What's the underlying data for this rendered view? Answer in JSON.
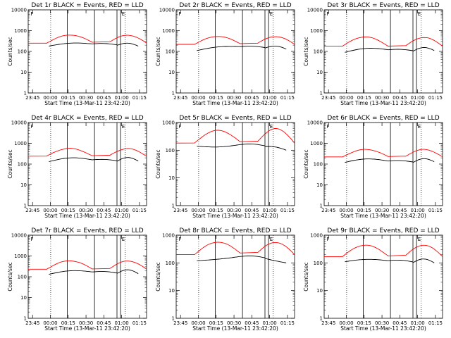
{
  "page": {
    "background": "#ffffff"
  },
  "colors": {
    "events": "#000000",
    "lld": "#ff0000",
    "axes": "#000000"
  },
  "chart_data": [
    {
      "id": "det-1r",
      "type": "line",
      "title": "Det 1r BLACK = Events, RED = LLD",
      "xlabel": "Start Time (13-Mar-11 23:42:20)",
      "ylabel": "Counts/sec",
      "yscale": "log",
      "ylim": [
        1,
        10000
      ],
      "x_ticks": [
        "23:45",
        "00:00",
        "00:15",
        "00:30",
        "00:45",
        "01:00",
        "01:15"
      ],
      "y_ticks": [
        "1",
        "10",
        "100",
        "1000",
        "10000"
      ],
      "lld": {
        "flat": 250,
        "peak1": 650,
        "mid": 280,
        "peak2": 650,
        "end": 250
      },
      "events": {
        "start": 180,
        "peak1": 280,
        "mid": 230,
        "peak2": 260,
        "end": 180
      },
      "annotations": [
        "F",
        "E"
      ]
    },
    {
      "id": "det-2r",
      "type": "line",
      "title": "Det 2r BLACK = Events, RED = LLD",
      "xlabel": "Start Time (13-Mar-11 23:42:20)",
      "ylabel": "Counts/sec",
      "yscale": "log",
      "ylim": [
        1,
        10000
      ],
      "x_ticks": [
        "23:45",
        "00:00",
        "00:15",
        "00:30",
        "00:45",
        "01:00",
        "01:15"
      ],
      "y_ticks": [
        "1",
        "10",
        "100",
        "1000",
        "10000"
      ],
      "lld": {
        "flat": 220,
        "peak1": 550,
        "mid": 240,
        "peak2": 550,
        "end": 220
      },
      "events": {
        "start": 110,
        "peak1": 200,
        "mid": 170,
        "peak2": 190,
        "end": 130
      },
      "annotations": [
        "F",
        "E"
      ]
    },
    {
      "id": "det-3r",
      "type": "line",
      "title": "Det 3r BLACK = Events, RED = LLD",
      "xlabel": "Start Time (13-Mar-11 23:42:20)",
      "ylabel": "Counts/sec",
      "yscale": "log",
      "ylim": [
        1,
        10000
      ],
      "x_ticks": [
        "23:45",
        "00:00",
        "00:15",
        "00:30",
        "00:45",
        "01:00",
        "01:15"
      ],
      "y_ticks": [
        "1",
        "10",
        "100",
        "1000",
        "10000"
      ],
      "lld": {
        "flat": 180,
        "peak1": 500,
        "mid": 180,
        "peak2": 480,
        "end": 180
      },
      "events": {
        "start": 90,
        "peak1": 160,
        "mid": 120,
        "peak2": 160,
        "end": 110
      },
      "annotations": [
        "F",
        "E"
      ]
    },
    {
      "id": "det-4r",
      "type": "line",
      "title": "Det 4r BLACK = Events, RED = LLD",
      "xlabel": "Start Time (13-Mar-11 23:42:20)",
      "ylabel": "Counts/sec",
      "yscale": "log",
      "ylim": [
        1,
        10000
      ],
      "x_ticks": [
        "23:45",
        "00:00",
        "00:15",
        "00:30",
        "00:45",
        "01:00",
        "01:15"
      ],
      "y_ticks": [
        "1",
        "10",
        "100",
        "1000",
        "10000"
      ],
      "lld": {
        "flat": 240,
        "peak1": 580,
        "mid": 250,
        "peak2": 580,
        "end": 240
      },
      "events": {
        "start": 130,
        "peak1": 220,
        "mid": 160,
        "peak2": 210,
        "end": 140
      },
      "annotations": [
        "F",
        "E"
      ]
    },
    {
      "id": "det-5r",
      "type": "line",
      "title": "Det 5r BLACK = Events, RED = LLD",
      "xlabel": "Start Time (13-Mar-11 23:42:20)",
      "ylabel": "Counts/sec",
      "yscale": "log",
      "ylim": [
        1,
        1000
      ],
      "x_ticks": [
        "23:45",
        "00:00",
        "00:15",
        "00:30",
        "00:45",
        "01:00",
        "01:15"
      ],
      "y_ticks": [
        "1",
        "10",
        "100",
        "1000"
      ],
      "lld": {
        "flat": 180,
        "peak1": 550,
        "mid": 200,
        "peak2": 650,
        "end": 180
      },
      "events": {
        "start": 140,
        "peak1": 140,
        "mid": 160,
        "peak2": 150,
        "end": 100
      },
      "annotations": [
        "F",
        "E"
      ]
    },
    {
      "id": "det-6r",
      "type": "line",
      "title": "Det 6r BLACK = Events, RED = LLD",
      "xlabel": "Start Time (13-Mar-11 23:42:20)",
      "ylabel": "Counts/sec",
      "yscale": "log",
      "ylim": [
        1,
        10000
      ],
      "x_ticks": [
        "23:45",
        "00:00",
        "00:15",
        "00:30",
        "00:45",
        "01:00",
        "01:15"
      ],
      "y_ticks": [
        "1",
        "10",
        "100",
        "1000",
        "10000"
      ],
      "lld": {
        "flat": 220,
        "peak1": 520,
        "mid": 230,
        "peak2": 530,
        "end": 220
      },
      "events": {
        "start": 120,
        "peak1": 190,
        "mid": 140,
        "peak2": 190,
        "end": 130
      },
      "annotations": [
        "F",
        "E"
      ]
    },
    {
      "id": "det-7r",
      "type": "line",
      "title": "Det 7r BLACK = Events, RED = LLD",
      "xlabel": "Start Time (13-Mar-11 23:42:20)",
      "ylabel": "Counts/sec",
      "yscale": "log",
      "ylim": [
        1,
        10000
      ],
      "x_ticks": [
        "23:45",
        "00:00",
        "00:15",
        "00:30",
        "00:45",
        "01:00",
        "01:15"
      ],
      "y_ticks": [
        "1",
        "10",
        "100",
        "1000",
        "10000"
      ],
      "lld": {
        "flat": 230,
        "peak1": 600,
        "mid": 240,
        "peak2": 600,
        "end": 230
      },
      "events": {
        "start": 130,
        "peak1": 220,
        "mid": 170,
        "peak2": 220,
        "end": 140
      },
      "annotations": [
        "F",
        "E"
      ]
    },
    {
      "id": "det-8r",
      "type": "line",
      "title": "Det 8r BLACK = Events, RED = LLD",
      "xlabel": "Start Time (13-Mar-11 23:42:20)",
      "ylabel": "Counts/sec",
      "yscale": "log",
      "ylim": [
        1,
        1000
      ],
      "x_ticks": [
        "23:45",
        "00:00",
        "00:15",
        "00:30",
        "00:45",
        "01:00",
        "01:15"
      ],
      "y_ticks": [
        "1",
        "10",
        "100",
        "1000"
      ],
      "lld": {
        "flat": 200,
        "peak1": 600,
        "mid": 230,
        "peak2": 600,
        "end": 200
      },
      "events": {
        "start": 120,
        "peak1": 160,
        "mid": 170,
        "peak2": 140,
        "end": 100
      },
      "annotations": [
        "F",
        "E"
      ]
    },
    {
      "id": "det-9r",
      "type": "line",
      "title": "Det 9r BLACK = Events, RED = LLD",
      "xlabel": "Start Time (13-Mar-11 23:42:20)",
      "ylabel": "Counts/sec",
      "yscale": "log",
      "ylim": [
        1,
        1000
      ],
      "x_ticks": [
        "23:45",
        "00:00",
        "00:15",
        "00:30",
        "00:45",
        "01:00",
        "01:15"
      ],
      "y_ticks": [
        "1",
        "10",
        "100",
        "1000"
      ],
      "lld": {
        "flat": 170,
        "peak1": 450,
        "mid": 180,
        "peak2": 460,
        "end": 170
      },
      "events": {
        "start": 110,
        "peak1": 140,
        "mid": 120,
        "peak2": 140,
        "end": 100
      },
      "annotations": [
        "F",
        "E"
      ]
    }
  ]
}
